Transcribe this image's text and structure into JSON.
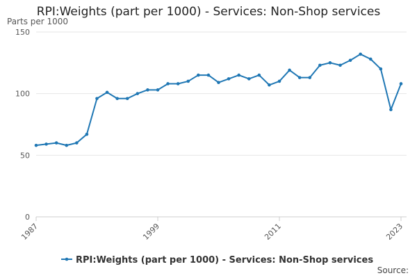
{
  "chart_data": {
    "type": "line",
    "title": "RPI:Weights (part per 1000) - Services: Non-Shop services",
    "ylabel": "Parts per 1000",
    "xlabel": "",
    "ylim": [
      0,
      150
    ],
    "xlim": [
      1987,
      2023
    ],
    "yticks": [
      "0",
      "50",
      "100",
      "150"
    ],
    "xticks": [
      "1987",
      "1999",
      "2011",
      "2023"
    ],
    "grid": true,
    "legend_position": "bottom",
    "x": [
      1987,
      1988,
      1989,
      1990,
      1991,
      1992,
      1993,
      1994,
      1995,
      1996,
      1997,
      1998,
      1999,
      2000,
      2001,
      2002,
      2003,
      2004,
      2005,
      2006,
      2007,
      2008,
      2009,
      2010,
      2011,
      2012,
      2013,
      2014,
      2015,
      2016,
      2017,
      2018,
      2019,
      2020,
      2021,
      2022,
      2023
    ],
    "series": [
      {
        "name": "RPI:Weights (part per 1000) - Services: Non-Shop services",
        "color": "#1f77b4",
        "values": [
          58,
          59,
          60,
          58,
          60,
          67,
          96,
          101,
          96,
          96,
          100,
          103,
          103,
          108,
          108,
          110,
          115,
          115,
          109,
          112,
          115,
          112,
          115,
          107,
          110,
          119,
          113,
          113,
          123,
          125,
          123,
          127,
          132,
          128,
          120,
          87,
          108
        ]
      }
    ]
  },
  "source_label": "Source:"
}
